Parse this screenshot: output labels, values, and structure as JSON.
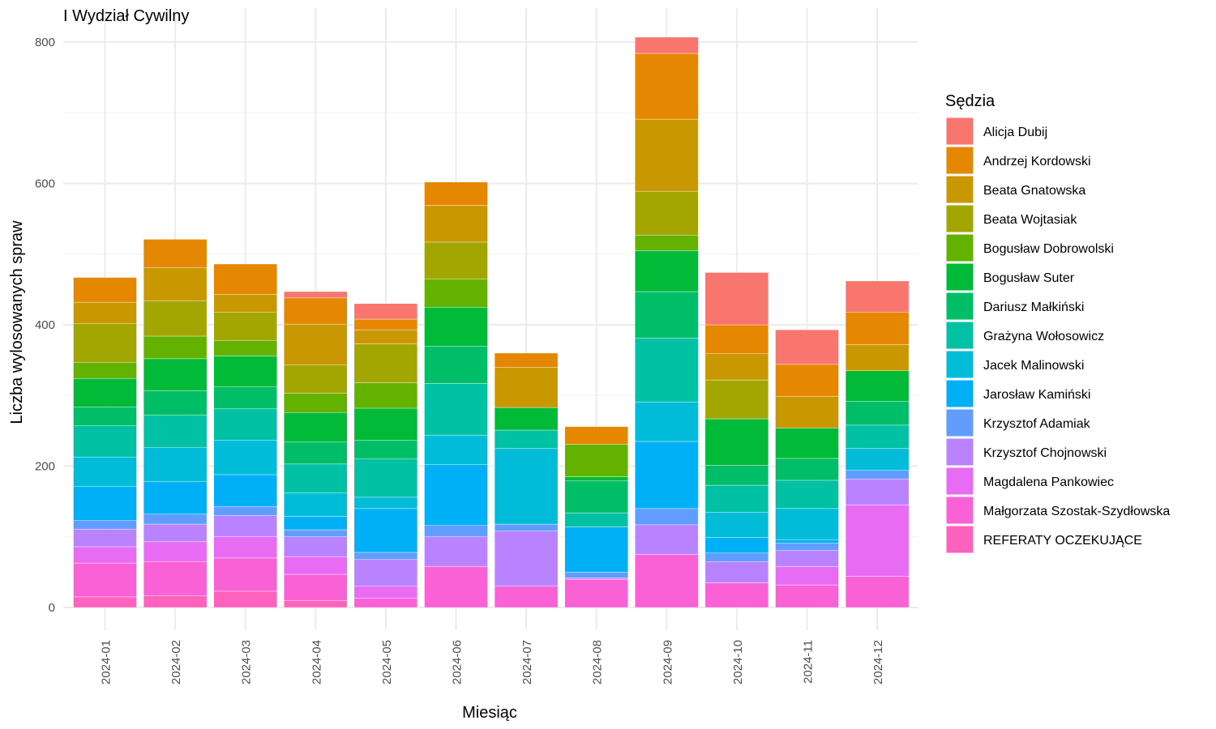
{
  "chart_data": {
    "type": "bar",
    "stacked": true,
    "title": "I Wydział Cywilny",
    "xlabel": "Miesiąc",
    "ylabel": "Liczba wylosowanych spraw",
    "ylim": [
      0,
      830
    ],
    "yticks": [
      0,
      200,
      400,
      600,
      800
    ],
    "grid": true,
    "legend_title": "Sędzia",
    "legend_position": "right",
    "categories": [
      "2024-01",
      "2024-02",
      "2024-03",
      "2024-04",
      "2024-05",
      "2024-06",
      "2024-07",
      "2024-08",
      "2024-09",
      "2024-10",
      "2024-11",
      "2024-12"
    ],
    "series": [
      {
        "name": "REFERATY OCZEKUJĄCE",
        "color": "#FF62BC",
        "values": [
          15,
          17,
          23,
          10,
          0,
          0,
          0,
          0,
          0,
          0,
          0,
          0
        ]
      },
      {
        "name": "Małgorzata Szostak-Szydłowska",
        "color": "#FB61D7",
        "values": [
          48,
          48,
          47,
          37,
          13,
          58,
          30,
          40,
          75,
          35,
          32,
          44
        ]
      },
      {
        "name": "Magdalena Pankowiec",
        "color": "#E76BF3",
        "values": [
          23,
          28,
          30,
          25,
          17,
          0,
          0,
          0,
          0,
          0,
          26,
          101
        ]
      },
      {
        "name": "Krzysztof Chojnowski",
        "color": "#B983FF",
        "values": [
          25,
          25,
          30,
          28,
          38,
          42,
          78,
          2,
          42,
          30,
          23,
          37
        ]
      },
      {
        "name": "Krzysztof Adamiak",
        "color": "#619CFF",
        "values": [
          12,
          14,
          13,
          10,
          10,
          16,
          10,
          8,
          23,
          12,
          10,
          12
        ]
      },
      {
        "name": "Jarosław Kamiński",
        "color": "#00B0F6",
        "values": [
          48,
          46,
          45,
          19,
          62,
          86,
          0,
          64,
          95,
          22,
          5,
          0
        ]
      },
      {
        "name": "Jacek Malinowski",
        "color": "#00BCD8",
        "values": [
          42,
          48,
          49,
          33,
          16,
          42,
          107,
          0,
          56,
          36,
          44,
          31
        ]
      },
      {
        "name": "Grażyna Wołosowicz",
        "color": "#00C1A3",
        "values": [
          44,
          46,
          44,
          41,
          54,
          73,
          26,
          20,
          90,
          38,
          40,
          33
        ]
      },
      {
        "name": "Dariusz Małkiński",
        "color": "#00BE67",
        "values": [
          27,
          35,
          31,
          31,
          27,
          53,
          0,
          45,
          66,
          28,
          31,
          34
        ]
      },
      {
        "name": "Bogusław Suter",
        "color": "#00BA38",
        "values": [
          40,
          45,
          44,
          42,
          45,
          55,
          32,
          6,
          58,
          66,
          43,
          43
        ]
      },
      {
        "name": "Bogusław Dobrowolski",
        "color": "#64B200",
        "values": [
          23,
          32,
          22,
          27,
          36,
          40,
          0,
          46,
          22,
          0,
          0,
          0
        ]
      },
      {
        "name": "Beata Wojtasiak",
        "color": "#A3A500",
        "values": [
          55,
          50,
          40,
          40,
          55,
          52,
          0,
          0,
          62,
          55,
          0,
          0
        ]
      },
      {
        "name": "Beata Gnatowska",
        "color": "#C99800",
        "values": [
          30,
          47,
          25,
          58,
          20,
          52,
          57,
          0,
          102,
          37,
          45,
          37
        ]
      },
      {
        "name": "Andrzej Kordowski",
        "color": "#E58700",
        "values": [
          35,
          40,
          43,
          37,
          15,
          33,
          20,
          25,
          93,
          41,
          45,
          46
        ]
      },
      {
        "name": "Alicja Dubij",
        "color": "#F8766D",
        "values": [
          0,
          0,
          0,
          9,
          22,
          0,
          0,
          0,
          23,
          74,
          49,
          44
        ]
      }
    ],
    "legend_order": [
      "Alicja Dubij",
      "Andrzej Kordowski",
      "Beata Gnatowska",
      "Beata Wojtasiak",
      "Bogusław Dobrowolski",
      "Bogusław Suter",
      "Dariusz Małkiński",
      "Grażyna Wołosowicz",
      "Jacek Malinowski",
      "Jarosław Kamiński",
      "Krzysztof Adamiak",
      "Krzysztof Chojnowski",
      "Magdalena Pankowiec",
      "Małgorzata Szostak-Szydłowska",
      "REFERATY OCZEKUJĄCE"
    ]
  }
}
